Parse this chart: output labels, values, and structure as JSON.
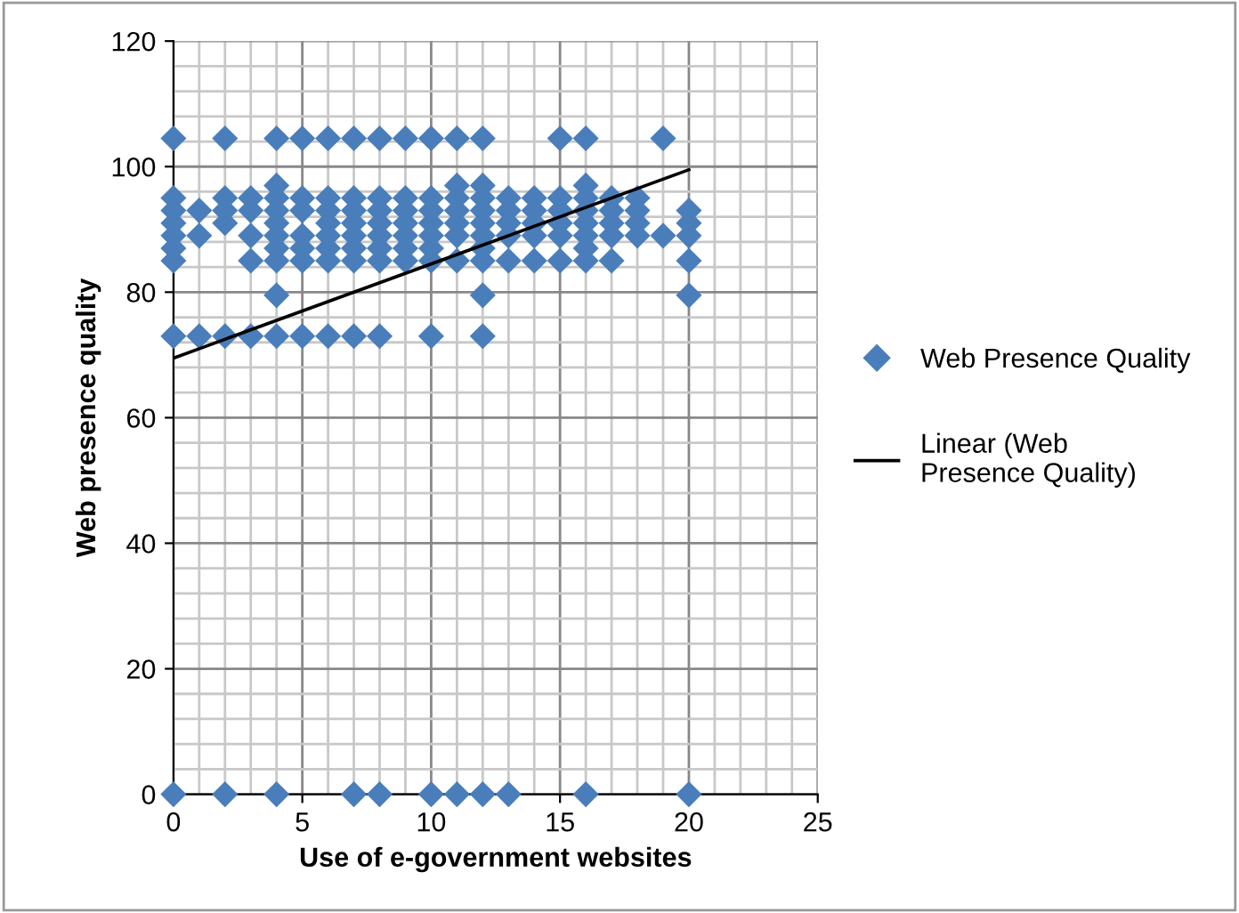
{
  "chart_data": {
    "type": "scatter",
    "xlabel": "Use of e-government websites",
    "ylabel": "Web presence quality",
    "xlim": [
      0,
      25
    ],
    "xticks": [
      0,
      5,
      10,
      15,
      20,
      25
    ],
    "ylim": [
      0,
      120
    ],
    "yticks": [
      0,
      20,
      40,
      60,
      80,
      100,
      120
    ],
    "grid": true,
    "legend": "right",
    "marker": "diamond",
    "series": [
      {
        "name": "Web Presence Quality",
        "color": "#4a7ebb",
        "x": [
          0,
          0,
          0,
          0,
          0,
          0,
          0,
          0,
          0,
          1,
          1,
          1,
          2,
          2,
          2,
          2,
          2,
          2,
          3,
          3,
          3,
          3,
          3,
          4,
          4,
          4,
          4,
          4,
          4,
          4,
          4,
          4,
          4,
          4,
          5,
          5,
          5,
          5,
          5,
          5,
          5,
          6,
          6,
          6,
          6,
          6,
          6,
          6,
          6,
          7,
          7,
          7,
          7,
          7,
          7,
          7,
          7,
          7,
          8,
          8,
          8,
          8,
          8,
          8,
          8,
          8,
          8,
          9,
          9,
          9,
          9,
          9,
          9,
          9,
          10,
          10,
          10,
          10,
          10,
          10,
          10,
          10,
          10,
          11,
          11,
          11,
          11,
          11,
          11,
          11,
          11,
          12,
          12,
          12,
          12,
          12,
          12,
          12,
          12,
          12,
          12,
          12,
          13,
          13,
          13,
          13,
          13,
          13,
          14,
          14,
          14,
          14,
          14,
          15,
          15,
          15,
          15,
          15,
          15,
          16,
          16,
          16,
          16,
          16,
          16,
          16,
          16,
          16,
          17,
          17,
          17,
          17,
          17,
          18,
          18,
          18,
          18,
          19,
          19,
          20,
          20,
          20,
          20,
          20,
          20
        ],
        "values": [
          104.5,
          95,
          93,
          91,
          89,
          87,
          85,
          73,
          0,
          93,
          89,
          73,
          104.5,
          95,
          93,
          91,
          73,
          0,
          95,
          93,
          89,
          85,
          73,
          104.5,
          97,
          95,
          93,
          91,
          89,
          87,
          85,
          79.5,
          73,
          0,
          104.5,
          95,
          93,
          89,
          87,
          85,
          73,
          104.5,
          95,
          93,
          91,
          89,
          87,
          85,
          73,
          104.5,
          95,
          93,
          91,
          89,
          87,
          85,
          73,
          0,
          104.5,
          95,
          93,
          91,
          89,
          87,
          85,
          73,
          0,
          104.5,
          95,
          93,
          91,
          89,
          87,
          85,
          104.5,
          95,
          93,
          91,
          89,
          87,
          85,
          73,
          0,
          104.5,
          97,
          95,
          93,
          91,
          89,
          85,
          0,
          104.5,
          97,
          95,
          93,
          91,
          89,
          87,
          85,
          79.5,
          73,
          0,
          95,
          93,
          91,
          89,
          85,
          0,
          95,
          93,
          91,
          89,
          85,
          104.5,
          95,
          93,
          91,
          89,
          85,
          104.5,
          97,
          95,
          93,
          91,
          89,
          87,
          85,
          0,
          95,
          93,
          91,
          89,
          85,
          95,
          93,
          91,
          89,
          104.5,
          89,
          93,
          91,
          89,
          85,
          79.5,
          0
        ]
      },
      {
        "name": "Linear (Web Presence Quality)",
        "color": "#000000",
        "type": "line",
        "marker": "none",
        "line_style": "solid",
        "x": [
          0,
          20
        ],
        "values": [
          69.5,
          99.5
        ]
      }
    ]
  }
}
